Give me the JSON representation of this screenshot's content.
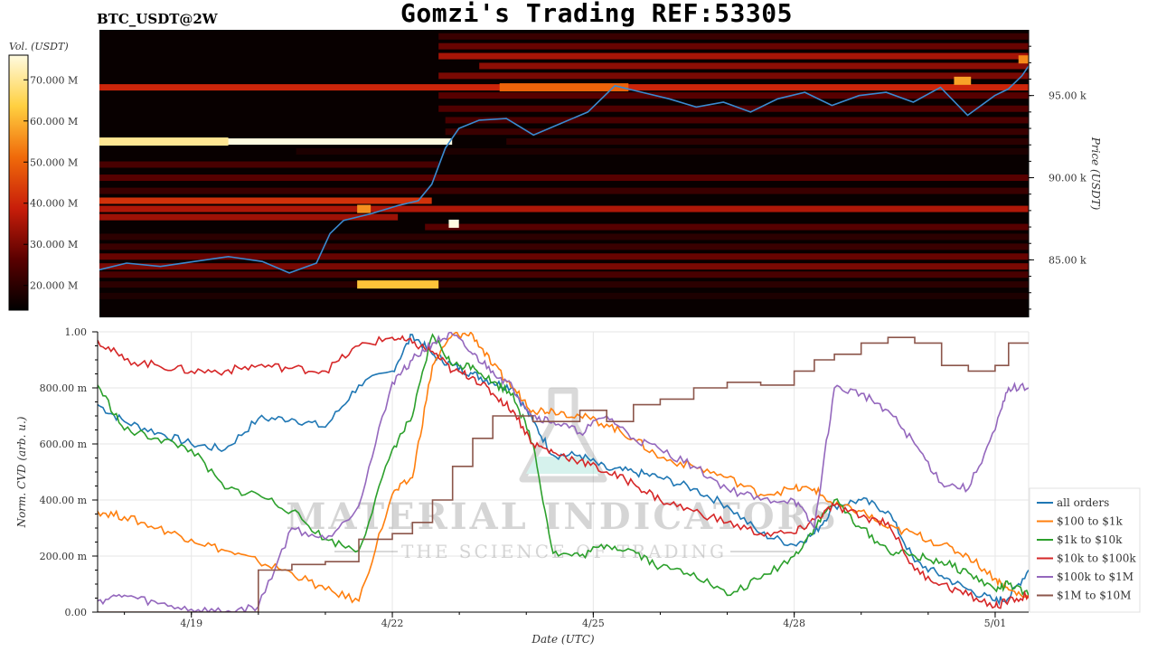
{
  "header": {
    "title": "Gomzi's Trading REF:53305",
    "symbol": "BTC_USDT@2W"
  },
  "colors": {
    "heatmap_bg": "#080000",
    "price_line": "#3a8ad0",
    "colorbar": [
      "#000000",
      "#5a0000",
      "#c81e0a",
      "#f06a0a",
      "#ffd040",
      "#fffbe0"
    ],
    "series": [
      "#1f77b4",
      "#ff7f0e",
      "#2ca02c",
      "#d62728",
      "#9467bd",
      "#8c564b"
    ]
  },
  "watermark": {
    "brand": "MATERIAL INDICATORS",
    "tagline": "THE SCIENCE OF TRADING",
    "icon": "flask-icon"
  },
  "chart_data": [
    {
      "type": "heatmap",
      "colorbar_label": "Vol. (USDT)",
      "colorbar_ticks": [
        "20.000 M",
        "30.000 M",
        "40.000 M",
        "50.000 M",
        "60.000 M",
        "70.000 M"
      ],
      "colorbar_tick_values": [
        20,
        30,
        40,
        50,
        60,
        70
      ],
      "colorbar_range": [
        14,
        76
      ],
      "ylabel": "Price (USDT)",
      "y_ticks": [
        "85.00 k",
        "90.00 k",
        "95.00 k"
      ],
      "y_tick_values": [
        85,
        90,
        95
      ],
      "ylim": [
        81.5,
        99
      ],
      "xlim": [
        17.6,
        31.3
      ],
      "bands": [
        {
          "price": 98.6,
          "x0": 22.6,
          "x1": 31.3,
          "vol": 22
        },
        {
          "price": 98.0,
          "x0": 22.6,
          "x1": 31.3,
          "vol": 28
        },
        {
          "price": 97.4,
          "x0": 22.6,
          "x1": 31.3,
          "vol": 35
        },
        {
          "price": 96.8,
          "x0": 23.2,
          "x1": 31.3,
          "vol": 32
        },
        {
          "price": 96.2,
          "x0": 22.6,
          "x1": 31.3,
          "vol": 30
        },
        {
          "price": 95.5,
          "x0": 17.6,
          "x1": 31.3,
          "vol": 40
        },
        {
          "price": 95.0,
          "x0": 22.6,
          "x1": 31.3,
          "vol": 26
        },
        {
          "price": 94.2,
          "x0": 22.6,
          "x1": 31.3,
          "vol": 25
        },
        {
          "price": 93.5,
          "x0": 22.7,
          "x1": 31.3,
          "vol": 24
        },
        {
          "price": 92.8,
          "x0": 22.7,
          "x1": 31.3,
          "vol": 22
        },
        {
          "price": 92.2,
          "x0": 17.6,
          "x1": 22.8,
          "vol": 76
        },
        {
          "price": 92.2,
          "x0": 23.6,
          "x1": 31.3,
          "vol": 20
        },
        {
          "price": 91.6,
          "x0": 20.5,
          "x1": 31.3,
          "vol": 18
        },
        {
          "price": 90.8,
          "x0": 17.6,
          "x1": 22.6,
          "vol": 24
        },
        {
          "price": 90.0,
          "x0": 17.6,
          "x1": 31.3,
          "vol": 26
        },
        {
          "price": 89.2,
          "x0": 17.6,
          "x1": 31.3,
          "vol": 22
        },
        {
          "price": 88.6,
          "x0": 17.6,
          "x1": 22.5,
          "vol": 42
        },
        {
          "price": 88.1,
          "x0": 17.6,
          "x1": 31.3,
          "vol": 36
        },
        {
          "price": 87.6,
          "x0": 17.6,
          "x1": 22.0,
          "vol": 34
        },
        {
          "price": 87.0,
          "x0": 22.4,
          "x1": 31.3,
          "vol": 26
        },
        {
          "price": 86.4,
          "x0": 17.6,
          "x1": 31.3,
          "vol": 20
        },
        {
          "price": 85.8,
          "x0": 17.6,
          "x1": 31.3,
          "vol": 22
        },
        {
          "price": 85.2,
          "x0": 17.6,
          "x1": 31.3,
          "vol": 28
        },
        {
          "price": 84.6,
          "x0": 17.6,
          "x1": 31.3,
          "vol": 30
        },
        {
          "price": 84.1,
          "x0": 17.6,
          "x1": 31.3,
          "vol": 24
        },
        {
          "price": 83.5,
          "x0": 17.6,
          "x1": 31.3,
          "vol": 20
        },
        {
          "price": 82.8,
          "x0": 17.6,
          "x1": 31.3,
          "vol": 18
        }
      ],
      "hot_spots": [
        {
          "price": 92.2,
          "x0": 17.6,
          "x1": 19.5,
          "vol": 70
        },
        {
          "price": 88.1,
          "x0": 21.4,
          "x1": 21.6,
          "vol": 56
        },
        {
          "price": 87.2,
          "x0": 22.75,
          "x1": 22.9,
          "vol": 76
        },
        {
          "price": 83.5,
          "x0": 21.4,
          "x1": 22.6,
          "vol": 62
        },
        {
          "price": 95.5,
          "x0": 23.5,
          "x1": 25.4,
          "vol": 50
        },
        {
          "price": 95.9,
          "x0": 30.2,
          "x1": 30.45,
          "vol": 58
        },
        {
          "price": 97.2,
          "x0": 31.15,
          "x1": 31.3,
          "vol": 55
        }
      ],
      "price_series": {
        "name": "BTC price",
        "x": [
          17.6,
          18.0,
          18.5,
          19.0,
          19.5,
          20.0,
          20.4,
          20.8,
          21.0,
          21.2,
          21.6,
          22.0,
          22.3,
          22.5,
          22.7,
          22.9,
          23.2,
          23.6,
          24.0,
          24.4,
          24.8,
          25.2,
          25.6,
          26.0,
          26.4,
          26.8,
          27.2,
          27.6,
          28.0,
          28.4,
          28.8,
          29.2,
          29.6,
          30.0,
          30.4,
          30.8,
          31.0,
          31.2,
          31.3
        ],
        "y": [
          84.4,
          84.8,
          84.6,
          84.9,
          85.2,
          84.9,
          84.2,
          84.8,
          86.6,
          87.4,
          87.8,
          88.3,
          88.6,
          89.6,
          91.8,
          93.0,
          93.5,
          93.6,
          92.6,
          93.3,
          94.0,
          95.6,
          95.2,
          94.8,
          94.3,
          94.6,
          94.0,
          94.8,
          95.2,
          94.4,
          95.0,
          95.2,
          94.6,
          95.5,
          93.8,
          95.0,
          95.4,
          96.2,
          96.8
        ]
      }
    },
    {
      "type": "line",
      "xlabel": "Date (UTC)",
      "ylabel": "Norm. CVD (arb. u.)",
      "x_ticks": [
        "4/19",
        "4/22",
        "4/25",
        "4/28",
        "5/01"
      ],
      "x_tick_values": [
        19,
        22,
        25,
        28,
        31
      ],
      "xlim": [
        17.6,
        31.5
      ],
      "y_ticks": [
        "0.00",
        "200.00 m",
        "400.00 m",
        "600.00 m",
        "800.00 m",
        "1.00"
      ],
      "y_tick_values": [
        0,
        0.2,
        0.4,
        0.6,
        0.8,
        1.0
      ],
      "ylim": [
        0,
        1
      ],
      "grid": true,
      "legend_position": "right",
      "x": [
        17.6,
        18.0,
        18.5,
        19.0,
        19.5,
        20.0,
        20.5,
        21.0,
        21.5,
        22.0,
        22.3,
        22.6,
        22.9,
        23.2,
        23.5,
        23.8,
        24.1,
        24.4,
        24.8,
        25.2,
        25.6,
        26.0,
        26.5,
        27.0,
        27.5,
        28.0,
        28.3,
        28.6,
        29.0,
        29.4,
        29.8,
        30.2,
        30.6,
        31.0,
        31.2,
        31.5
      ],
      "series": [
        {
          "name": "all orders",
          "values": [
            0.74,
            0.68,
            0.64,
            0.6,
            0.58,
            0.69,
            0.69,
            0.66,
            0.81,
            0.86,
            0.99,
            0.92,
            0.88,
            0.85,
            0.82,
            0.8,
            0.68,
            0.56,
            0.56,
            0.51,
            0.5,
            0.48,
            0.44,
            0.38,
            0.28,
            0.24,
            0.28,
            0.38,
            0.4,
            0.36,
            0.18,
            0.13,
            0.08,
            0.04,
            0.05,
            0.15
          ]
        },
        {
          "name": "$100 to $1k",
          "values": [
            0.36,
            0.34,
            0.3,
            0.26,
            0.22,
            0.18,
            0.14,
            0.08,
            0.04,
            0.42,
            0.48,
            0.88,
            0.99,
            0.99,
            0.88,
            0.8,
            0.72,
            0.72,
            0.7,
            0.67,
            0.62,
            0.55,
            0.52,
            0.48,
            0.42,
            0.44,
            0.44,
            0.38,
            0.36,
            0.3,
            0.28,
            0.24,
            0.2,
            0.12,
            0.08,
            0.05
          ]
        },
        {
          "name": "$1k to $10k",
          "values": [
            0.81,
            0.65,
            0.62,
            0.58,
            0.44,
            0.42,
            0.36,
            0.26,
            0.22,
            0.58,
            0.7,
            0.99,
            0.88,
            0.88,
            0.82,
            0.78,
            0.6,
            0.21,
            0.2,
            0.24,
            0.22,
            0.16,
            0.14,
            0.06,
            0.12,
            0.2,
            0.3,
            0.4,
            0.3,
            0.22,
            0.2,
            0.18,
            0.14,
            0.08,
            0.1,
            0.06
          ]
        },
        {
          "name": "$10k to $100k",
          "values": [
            0.97,
            0.9,
            0.88,
            0.86,
            0.86,
            0.88,
            0.87,
            0.86,
            0.95,
            0.98,
            0.96,
            0.93,
            0.86,
            0.84,
            0.78,
            0.72,
            0.6,
            0.57,
            0.54,
            0.5,
            0.46,
            0.4,
            0.36,
            0.32,
            0.28,
            0.28,
            0.33,
            0.38,
            0.34,
            0.32,
            0.15,
            0.1,
            0.06,
            0.02,
            0.04,
            0.06
          ]
        },
        {
          "name": "$100k to $1M",
          "values": [
            0.04,
            0.06,
            0.03,
            0.01,
            0.0,
            0.02,
            0.3,
            0.26,
            0.38,
            0.82,
            0.9,
            0.96,
            0.99,
            0.92,
            0.86,
            0.8,
            0.7,
            0.68,
            0.64,
            0.7,
            0.62,
            0.58,
            0.52,
            0.44,
            0.4,
            0.4,
            0.3,
            0.8,
            0.78,
            0.72,
            0.6,
            0.46,
            0.44,
            0.65,
            0.8,
            0.8
          ]
        },
        {
          "name": "$1M to $10M",
          "values": [
            0.0,
            0.0,
            0.0,
            0.0,
            0.0,
            0.15,
            0.17,
            0.18,
            0.26,
            0.28,
            0.32,
            0.4,
            0.52,
            0.62,
            0.7,
            0.7,
            0.68,
            0.68,
            0.72,
            0.68,
            0.74,
            0.76,
            0.8,
            0.82,
            0.81,
            0.86,
            0.9,
            0.92,
            0.96,
            0.98,
            0.96,
            0.88,
            0.86,
            0.88,
            0.96,
            0.96
          ]
        }
      ]
    }
  ]
}
